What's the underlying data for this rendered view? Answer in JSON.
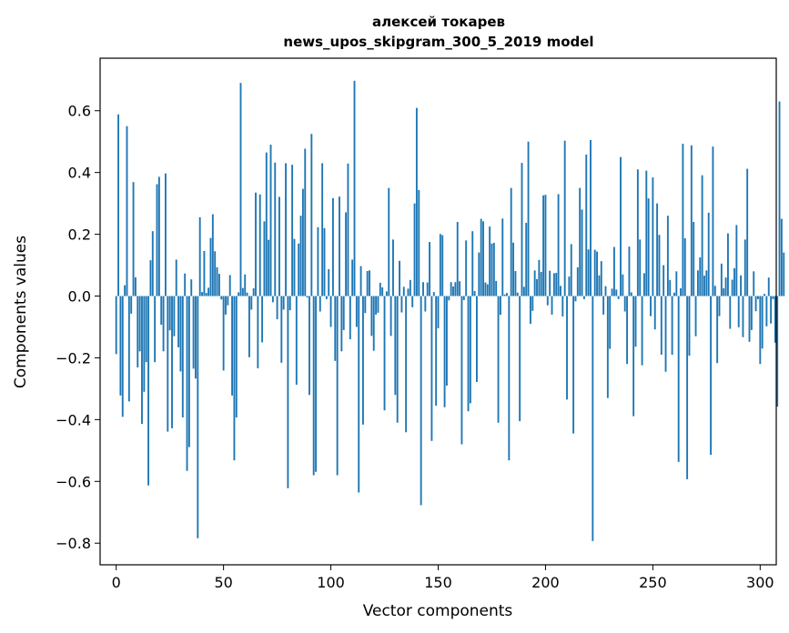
{
  "chart_data": {
    "type": "bar",
    "title_line1": "алексей токарев",
    "title_line2": "news_upos_skipgram_300_5_2019 model",
    "xlabel": "Vector components",
    "ylabel": "Components values",
    "xlim": [
      -7.5,
      307.5
    ],
    "ylim": [
      -0.87,
      0.77
    ],
    "xticks": [
      0,
      50,
      100,
      150,
      200,
      250,
      300
    ],
    "yticks": [
      -0.8,
      -0.6,
      -0.4,
      -0.2,
      0.0,
      0.2,
      0.4,
      0.6
    ],
    "ytick_labels": [
      "−0.8",
      "−0.6",
      "−0.4",
      "−0.2",
      "0.0",
      "0.2",
      "0.4",
      "0.6"
    ],
    "bar_color": "#1f77b4",
    "values": [
      -0.188,
      0.588,
      -0.322,
      -0.391,
      0.035,
      0.55,
      -0.341,
      -0.057,
      0.369,
      0.061,
      -0.231,
      -0.179,
      -0.414,
      -0.31,
      -0.214,
      -0.613,
      0.116,
      0.21,
      -0.214,
      0.362,
      0.386,
      -0.093,
      -0.179,
      0.397,
      -0.439,
      -0.111,
      -0.428,
      -0.13,
      0.118,
      -0.166,
      -0.244,
      -0.393,
      0.073,
      -0.566,
      -0.489,
      0.054,
      -0.235,
      -0.267,
      -0.784,
      0.255,
      0.013,
      0.146,
      0.01,
      0.027,
      0.188,
      0.265,
      0.145,
      0.093,
      0.072,
      -0.011,
      -0.241,
      -0.06,
      -0.03,
      0.068,
      -0.322,
      -0.532,
      -0.393,
      0.012,
      0.69,
      0.026,
      0.07,
      0.011,
      -0.198,
      -0.044,
      0.025,
      0.335,
      -0.234,
      0.329,
      -0.15,
      0.242,
      0.465,
      0.182,
      0.49,
      -0.02,
      0.432,
      -0.075,
      0.321,
      -0.216,
      -0.044,
      0.43,
      -0.622,
      -0.046,
      0.425,
      0.185,
      -0.287,
      0.17,
      0.26,
      0.347,
      0.477,
      -0.005,
      -0.32,
      0.525,
      -0.58,
      -0.569,
      0.223,
      -0.05,
      0.43,
      0.22,
      -0.01,
      0.087,
      -0.1,
      0.317,
      -0.21,
      -0.58,
      0.322,
      -0.179,
      -0.11,
      0.271,
      0.429,
      -0.14,
      0.118,
      0.697,
      -0.1,
      -0.636,
      0.097,
      -0.416,
      -0.055,
      0.081,
      0.083,
      -0.129,
      -0.177,
      -0.06,
      -0.054,
      0.043,
      0.028,
      -0.37,
      0.015,
      0.35,
      -0.129,
      0.183,
      -0.32,
      -0.41,
      0.114,
      -0.053,
      0.03,
      -0.441,
      0.024,
      0.052,
      -0.036,
      0.3,
      0.609,
      0.343,
      -0.677,
      0.045,
      -0.05,
      0.044,
      0.175,
      -0.469,
      0.013,
      -0.355,
      -0.104,
      0.201,
      0.197,
      -0.36,
      -0.29,
      -0.014,
      0.045,
      0.031,
      0.045,
      0.24,
      0.048,
      -0.48,
      -0.013,
      0.18,
      -0.373,
      -0.347,
      0.21,
      0.016,
      -0.278,
      0.141,
      0.25,
      0.242,
      0.044,
      0.038,
      0.225,
      0.17,
      0.172,
      0.049,
      -0.41,
      -0.061,
      0.251,
      0.005,
      0.01,
      -0.532,
      0.35,
      0.173,
      0.081,
      0.011,
      -0.405,
      0.431,
      0.03,
      0.237,
      0.5,
      -0.09,
      -0.048,
      0.083,
      0.055,
      0.117,
      0.078,
      0.326,
      0.328,
      -0.03,
      0.082,
      -0.06,
      0.074,
      0.075,
      0.33,
      0.033,
      -0.066,
      0.503,
      -0.335,
      0.063,
      0.168,
      -0.445,
      -0.017,
      0.093,
      0.35,
      0.28,
      -0.01,
      0.458,
      0.151,
      0.505,
      -0.793,
      0.15,
      0.144,
      0.067,
      0.113,
      -0.06,
      0.032,
      -0.33,
      -0.171,
      0.024,
      0.159,
      0.021,
      -0.01,
      0.45,
      0.07,
      -0.05,
      -0.22,
      0.16,
      0.012,
      -0.389,
      -0.164,
      0.41,
      0.183,
      -0.224,
      0.074,
      0.406,
      0.316,
      -0.065,
      0.384,
      -0.108,
      0.3,
      0.198,
      -0.19,
      0.1,
      -0.245,
      0.26,
      0.052,
      -0.19,
      0.011,
      0.08,
      -0.537,
      0.025,
      0.493,
      0.187,
      -0.593,
      -0.193,
      0.488,
      0.24,
      -0.13,
      0.083,
      0.125,
      0.391,
      0.066,
      0.083,
      0.27,
      -0.514,
      0.484,
      0.033,
      -0.217,
      -0.065,
      0.105,
      0.025,
      0.06,
      0.203,
      -0.106,
      0.053,
      0.09,
      0.23,
      -0.101,
      0.067,
      -0.133,
      0.183,
      0.412,
      -0.148,
      -0.11,
      0.08,
      -0.049,
      -0.01,
      -0.22,
      -0.17,
      0.007,
      -0.098,
      0.06,
      -0.089,
      -0.01,
      -0.151,
      -0.358,
      0.63,
      0.25,
      0.141
    ]
  }
}
